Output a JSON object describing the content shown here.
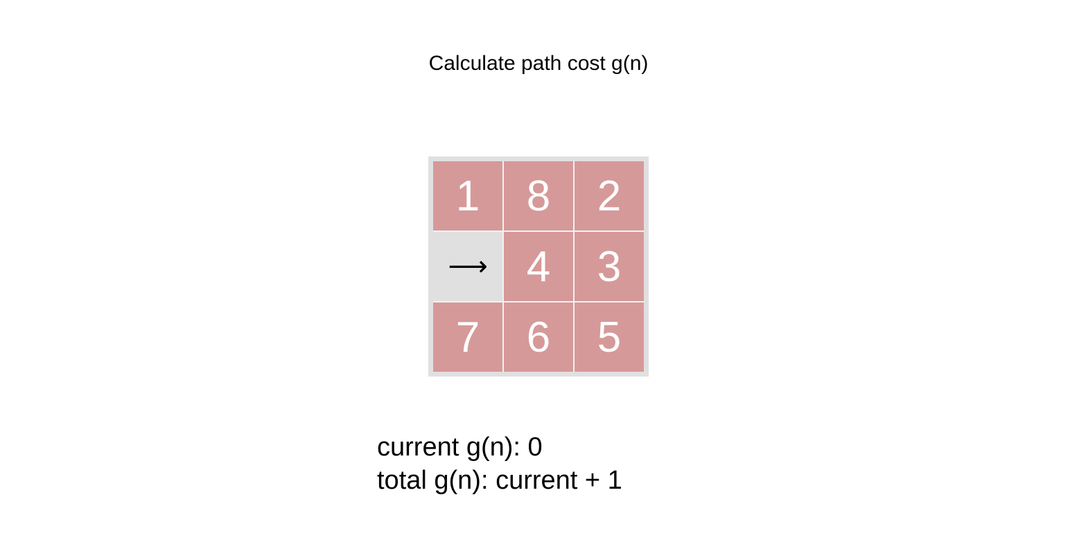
{
  "title": "Calculate path cost g(n)",
  "board": {
    "tile_color": "#d69999",
    "blank_color": "#e0e0e0",
    "rows": [
      [
        "1",
        "8",
        "2"
      ],
      [
        "⟶",
        "4",
        "3"
      ],
      [
        "7",
        "6",
        "5"
      ]
    ],
    "blank_position": [
      1,
      0
    ]
  },
  "info": {
    "current": "current g(n): 0",
    "total": "total g(n): current + 1"
  }
}
